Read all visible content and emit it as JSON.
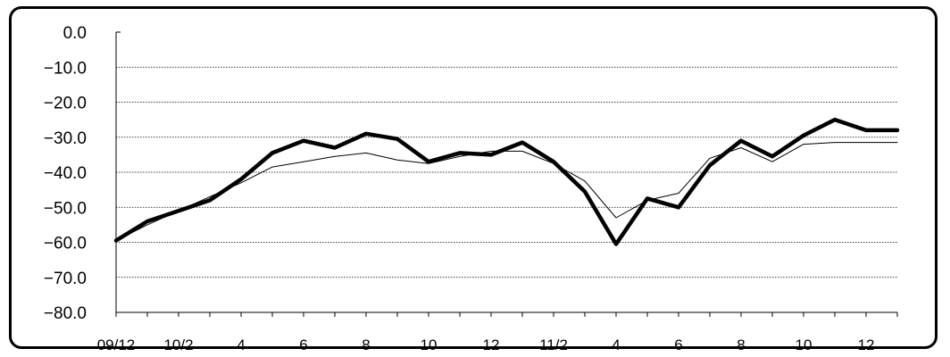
{
  "chart_data": {
    "type": "line",
    "title": "",
    "xlabel": "",
    "ylabel": "",
    "ylim": [
      -80,
      0
    ],
    "y_ticks": [
      0,
      -10,
      -20,
      -30,
      -40,
      -50,
      -60,
      -70,
      -80
    ],
    "y_tick_labels": [
      "0.0",
      "−10.0",
      "−20.0",
      "−30.0",
      "−40.0",
      "−50.0",
      "−60.0",
      "−70.0",
      "−80.0"
    ],
    "grid": "horizontal dashed",
    "x_ticks": [
      "09/12",
      "10/2",
      "4",
      "6",
      "8",
      "10",
      "12",
      "11/2",
      "4",
      "6",
      "8",
      "10",
      "12"
    ],
    "series": [
      {
        "line_style": "thick",
        "color": "#000000",
        "values": [
          -59.5,
          -54,
          -51,
          -48,
          -42,
          -34.5,
          -31,
          -33,
          -29,
          -30.5,
          -37,
          -34.5,
          -35,
          -31.5,
          -37,
          -45.5,
          -60.5,
          -47.5,
          -50,
          -38,
          -31,
          -35.5,
          -29.5,
          -25,
          -28,
          -28
        ]
      },
      {
        "line_style": "thin",
        "color": "#000000",
        "values": [
          -59.5,
          -55,
          -51,
          -47,
          -43,
          -38.5,
          -37,
          -35.5,
          -34.5,
          -36.5,
          -37.5,
          -35.5,
          -34,
          -34,
          -37.5,
          -42.5,
          -53,
          -48,
          -46,
          -36,
          -33,
          -37,
          -32,
          -31.5,
          -31.5,
          -31.5
        ]
      }
    ]
  }
}
